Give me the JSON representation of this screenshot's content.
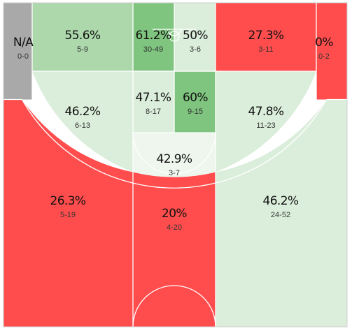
{
  "colors": {
    "hot": "#ff4d4d",
    "cold_light": "#dbeedb",
    "cold_lighter": "#eef6ee",
    "warm_mid": "#acd8ac",
    "warm_strong": "#7fc47f",
    "neutral": "#a9a9a9",
    "lines": "#ffffff",
    "border": "#cfcfcf"
  },
  "chart_data": {
    "type": "heatmap",
    "title": "",
    "zones": [
      {
        "id": "left-corner-three",
        "pct": "N/A",
        "made": 0,
        "attempts": 0,
        "fraction": "0-0",
        "color": "neutral"
      },
      {
        "id": "left-baseline-midrange",
        "pct": "55.6%",
        "made": 5,
        "attempts": 9,
        "fraction": "5-9",
        "color": "warm_mid"
      },
      {
        "id": "paint-upper-left",
        "pct": "61.2%",
        "made": 30,
        "attempts": 49,
        "fraction": "30-49",
        "color": "warm_strong"
      },
      {
        "id": "paint-upper-right",
        "pct": "50%",
        "made": 3,
        "attempts": 6,
        "fraction": "3-6",
        "color": "cold_light"
      },
      {
        "id": "right-baseline-midrange",
        "pct": "27.3%",
        "made": 3,
        "attempts": 11,
        "fraction": "3-11",
        "color": "hot"
      },
      {
        "id": "right-corner-three",
        "pct": "0%",
        "made": 0,
        "attempts": 2,
        "fraction": "0-2",
        "color": "hot"
      },
      {
        "id": "left-wing-midrange",
        "pct": "46.2%",
        "made": 6,
        "attempts": 13,
        "fraction": "6-13",
        "color": "cold_light"
      },
      {
        "id": "paint-lower-left",
        "pct": "47.1%",
        "made": 8,
        "attempts": 17,
        "fraction": "8-17",
        "color": "cold_light"
      },
      {
        "id": "paint-lower-right",
        "pct": "60%",
        "made": 9,
        "attempts": 15,
        "fraction": "9-15",
        "color": "warm_strong"
      },
      {
        "id": "right-wing-midrange",
        "pct": "47.8%",
        "made": 11,
        "attempts": 23,
        "fraction": "11-23",
        "color": "cold_light"
      },
      {
        "id": "top-key-midrange",
        "pct": "42.9%",
        "made": 3,
        "attempts": 7,
        "fraction": "3-7",
        "color": "cold_lighter"
      },
      {
        "id": "left-wing-three",
        "pct": "26.3%",
        "made": 5,
        "attempts": 19,
        "fraction": "5-19",
        "color": "hot"
      },
      {
        "id": "top-key-three",
        "pct": "20%",
        "made": 4,
        "attempts": 20,
        "fraction": "4-20",
        "color": "hot"
      },
      {
        "id": "right-wing-three",
        "pct": "46.2%",
        "made": 24,
        "attempts": 52,
        "fraction": "24-52",
        "color": "cold_light"
      }
    ]
  }
}
